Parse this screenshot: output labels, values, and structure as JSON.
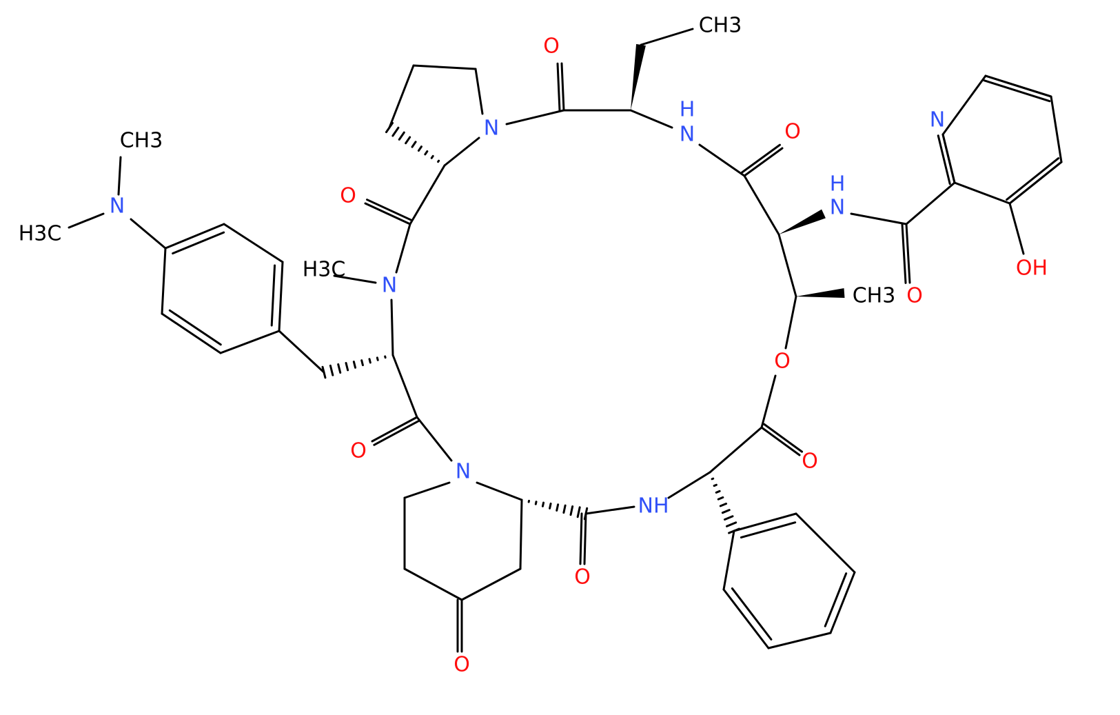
{
  "atoms": [
    "CH3",
    "O",
    "N",
    "H",
    "N",
    "O",
    "N",
    "H",
    "N",
    "O",
    "CH3",
    "N",
    "H3C",
    "H3C",
    "N",
    "OH",
    "O",
    "CH3",
    "O",
    "O",
    "O",
    "N",
    "NH",
    "O",
    "O"
  ]
}
